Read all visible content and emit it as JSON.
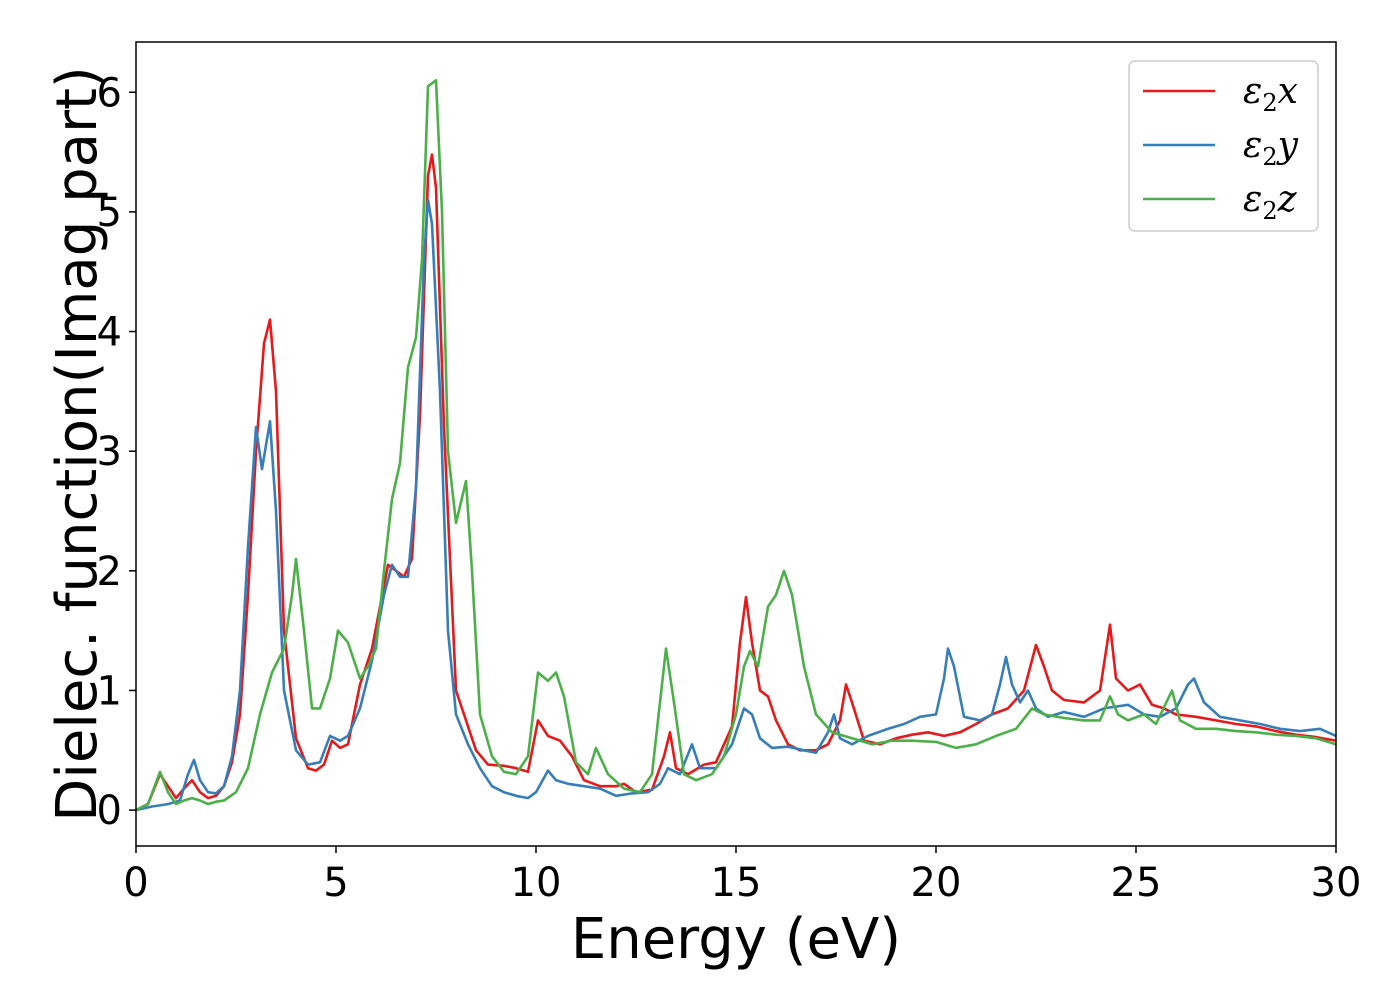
{
  "chart_data": {
    "type": "line",
    "xlabel": "Energy (eV)",
    "ylabel": "Dielec. function(Imag part)",
    "xlim": [
      0,
      30
    ],
    "ylim": [
      -0.3,
      6.42
    ],
    "xticks": [
      0,
      5,
      10,
      15,
      20,
      25,
      30
    ],
    "yticks": [
      0,
      1,
      2,
      3,
      4,
      5,
      6
    ],
    "grid": false,
    "legend_position": "top-right",
    "series": [
      {
        "name": "ε2x",
        "symbol": "ε",
        "sub": "2",
        "axis": "x",
        "color": "#e41a1c",
        "points": [
          [
            0,
            0
          ],
          [
            0.3,
            0.05
          ],
          [
            0.6,
            0.3
          ],
          [
            0.8,
            0.2
          ],
          [
            1.0,
            0.1
          ],
          [
            1.2,
            0.18
          ],
          [
            1.4,
            0.25
          ],
          [
            1.6,
            0.15
          ],
          [
            1.8,
            0.1
          ],
          [
            2.0,
            0.12
          ],
          [
            2.2,
            0.2
          ],
          [
            2.4,
            0.4
          ],
          [
            2.6,
            0.8
          ],
          [
            2.8,
            1.8
          ],
          [
            3.0,
            3.0
          ],
          [
            3.2,
            3.9
          ],
          [
            3.35,
            4.1
          ],
          [
            3.5,
            3.5
          ],
          [
            3.7,
            1.5
          ],
          [
            4.0,
            0.6
          ],
          [
            4.3,
            0.35
          ],
          [
            4.5,
            0.33
          ],
          [
            4.7,
            0.38
          ],
          [
            4.9,
            0.58
          ],
          [
            5.1,
            0.52
          ],
          [
            5.3,
            0.55
          ],
          [
            5.6,
            1.05
          ],
          [
            5.9,
            1.35
          ],
          [
            6.1,
            1.7
          ],
          [
            6.3,
            2.05
          ],
          [
            6.5,
            2.0
          ],
          [
            6.7,
            1.95
          ],
          [
            6.9,
            2.1
          ],
          [
            7.1,
            3.3
          ],
          [
            7.3,
            5.3
          ],
          [
            7.4,
            5.48
          ],
          [
            7.5,
            5.2
          ],
          [
            7.7,
            3.2
          ],
          [
            8.0,
            1.0
          ],
          [
            8.3,
            0.7
          ],
          [
            8.5,
            0.5
          ],
          [
            8.8,
            0.38
          ],
          [
            9.2,
            0.37
          ],
          [
            9.5,
            0.35
          ],
          [
            9.8,
            0.32
          ],
          [
            10.05,
            0.75
          ],
          [
            10.3,
            0.62
          ],
          [
            10.6,
            0.58
          ],
          [
            10.9,
            0.45
          ],
          [
            11.2,
            0.25
          ],
          [
            11.6,
            0.2
          ],
          [
            12.0,
            0.2
          ],
          [
            12.2,
            0.22
          ],
          [
            12.5,
            0.15
          ],
          [
            12.9,
            0.17
          ],
          [
            13.2,
            0.45
          ],
          [
            13.35,
            0.65
          ],
          [
            13.5,
            0.35
          ],
          [
            13.8,
            0.3
          ],
          [
            14.2,
            0.38
          ],
          [
            14.5,
            0.4
          ],
          [
            14.9,
            0.7
          ],
          [
            15.1,
            1.4
          ],
          [
            15.25,
            1.78
          ],
          [
            15.4,
            1.4
          ],
          [
            15.6,
            1.0
          ],
          [
            15.8,
            0.95
          ],
          [
            16.0,
            0.75
          ],
          [
            16.3,
            0.55
          ],
          [
            16.6,
            0.5
          ],
          [
            17.0,
            0.5
          ],
          [
            17.3,
            0.55
          ],
          [
            17.6,
            0.75
          ],
          [
            17.75,
            1.05
          ],
          [
            17.9,
            0.9
          ],
          [
            18.2,
            0.58
          ],
          [
            18.6,
            0.55
          ],
          [
            19.0,
            0.6
          ],
          [
            19.4,
            0.63
          ],
          [
            19.8,
            0.65
          ],
          [
            20.2,
            0.62
          ],
          [
            20.6,
            0.65
          ],
          [
            21.0,
            0.72
          ],
          [
            21.4,
            0.8
          ],
          [
            21.8,
            0.85
          ],
          [
            22.2,
            1.0
          ],
          [
            22.5,
            1.38
          ],
          [
            22.7,
            1.2
          ],
          [
            22.9,
            1.0
          ],
          [
            23.2,
            0.92
          ],
          [
            23.7,
            0.9
          ],
          [
            24.1,
            1.0
          ],
          [
            24.35,
            1.55
          ],
          [
            24.5,
            1.1
          ],
          [
            24.8,
            1.0
          ],
          [
            25.1,
            1.05
          ],
          [
            25.4,
            0.88
          ],
          [
            25.7,
            0.85
          ],
          [
            26.0,
            0.8
          ],
          [
            26.5,
            0.78
          ],
          [
            27.0,
            0.75
          ],
          [
            27.5,
            0.72
          ],
          [
            28.0,
            0.7
          ],
          [
            28.5,
            0.66
          ],
          [
            29.0,
            0.63
          ],
          [
            29.5,
            0.61
          ],
          [
            30.0,
            0.58
          ]
        ]
      },
      {
        "name": "ε2y",
        "symbol": "ε",
        "sub": "2",
        "axis": "y",
        "color": "#377eb8",
        "points": [
          [
            0,
            0
          ],
          [
            0.4,
            0.03
          ],
          [
            0.8,
            0.05
          ],
          [
            1.1,
            0.08
          ],
          [
            1.3,
            0.3
          ],
          [
            1.45,
            0.42
          ],
          [
            1.6,
            0.25
          ],
          [
            1.8,
            0.15
          ],
          [
            2.0,
            0.14
          ],
          [
            2.2,
            0.2
          ],
          [
            2.4,
            0.45
          ],
          [
            2.6,
            1.0
          ],
          [
            2.8,
            2.2
          ],
          [
            3.0,
            3.2
          ],
          [
            3.15,
            2.85
          ],
          [
            3.35,
            3.25
          ],
          [
            3.5,
            2.5
          ],
          [
            3.7,
            1.0
          ],
          [
            4.0,
            0.5
          ],
          [
            4.3,
            0.38
          ],
          [
            4.6,
            0.4
          ],
          [
            4.85,
            0.62
          ],
          [
            5.1,
            0.58
          ],
          [
            5.3,
            0.62
          ],
          [
            5.6,
            0.85
          ],
          [
            5.9,
            1.25
          ],
          [
            6.2,
            1.8
          ],
          [
            6.4,
            2.05
          ],
          [
            6.6,
            1.95
          ],
          [
            6.8,
            1.95
          ],
          [
            7.0,
            2.7
          ],
          [
            7.2,
            4.6
          ],
          [
            7.3,
            5.1
          ],
          [
            7.4,
            4.9
          ],
          [
            7.6,
            3.5
          ],
          [
            7.8,
            1.5
          ],
          [
            8.0,
            0.8
          ],
          [
            8.3,
            0.55
          ],
          [
            8.6,
            0.35
          ],
          [
            8.9,
            0.2
          ],
          [
            9.2,
            0.15
          ],
          [
            9.5,
            0.12
          ],
          [
            9.8,
            0.1
          ],
          [
            10.0,
            0.15
          ],
          [
            10.3,
            0.33
          ],
          [
            10.5,
            0.25
          ],
          [
            10.8,
            0.22
          ],
          [
            11.2,
            0.2
          ],
          [
            11.6,
            0.18
          ],
          [
            12.0,
            0.12
          ],
          [
            12.4,
            0.14
          ],
          [
            12.8,
            0.15
          ],
          [
            13.1,
            0.22
          ],
          [
            13.3,
            0.35
          ],
          [
            13.6,
            0.3
          ],
          [
            13.9,
            0.55
          ],
          [
            14.1,
            0.35
          ],
          [
            14.5,
            0.35
          ],
          [
            14.9,
            0.55
          ],
          [
            15.2,
            0.85
          ],
          [
            15.4,
            0.8
          ],
          [
            15.6,
            0.6
          ],
          [
            15.9,
            0.52
          ],
          [
            16.3,
            0.53
          ],
          [
            16.7,
            0.5
          ],
          [
            17.0,
            0.48
          ],
          [
            17.3,
            0.65
          ],
          [
            17.45,
            0.8
          ],
          [
            17.6,
            0.6
          ],
          [
            17.9,
            0.55
          ],
          [
            18.3,
            0.62
          ],
          [
            18.8,
            0.68
          ],
          [
            19.2,
            0.72
          ],
          [
            19.6,
            0.78
          ],
          [
            20.0,
            0.8
          ],
          [
            20.2,
            1.1
          ],
          [
            20.3,
            1.35
          ],
          [
            20.45,
            1.2
          ],
          [
            20.7,
            0.78
          ],
          [
            21.1,
            0.75
          ],
          [
            21.4,
            0.8
          ],
          [
            21.6,
            1.05
          ],
          [
            21.75,
            1.28
          ],
          [
            21.9,
            1.05
          ],
          [
            22.1,
            0.9
          ],
          [
            22.3,
            1.0
          ],
          [
            22.5,
            0.85
          ],
          [
            22.8,
            0.78
          ],
          [
            23.2,
            0.82
          ],
          [
            23.7,
            0.78
          ],
          [
            24.2,
            0.85
          ],
          [
            24.8,
            0.88
          ],
          [
            25.2,
            0.8
          ],
          [
            25.6,
            0.78
          ],
          [
            26.0,
            0.85
          ],
          [
            26.3,
            1.05
          ],
          [
            26.45,
            1.1
          ],
          [
            26.7,
            0.9
          ],
          [
            27.1,
            0.78
          ],
          [
            27.6,
            0.75
          ],
          [
            28.1,
            0.72
          ],
          [
            28.6,
            0.68
          ],
          [
            29.1,
            0.66
          ],
          [
            29.6,
            0.68
          ],
          [
            30.0,
            0.62
          ]
        ]
      },
      {
        "name": "ε2z",
        "symbol": "ε",
        "sub": "2",
        "axis": "z",
        "color": "#4daf4a",
        "points": [
          [
            0,
            0
          ],
          [
            0.3,
            0.05
          ],
          [
            0.6,
            0.32
          ],
          [
            0.8,
            0.15
          ],
          [
            1.0,
            0.05
          ],
          [
            1.2,
            0.08
          ],
          [
            1.4,
            0.1
          ],
          [
            1.6,
            0.08
          ],
          [
            1.8,
            0.05
          ],
          [
            2.0,
            0.07
          ],
          [
            2.2,
            0.08
          ],
          [
            2.5,
            0.15
          ],
          [
            2.8,
            0.35
          ],
          [
            3.1,
            0.8
          ],
          [
            3.4,
            1.15
          ],
          [
            3.7,
            1.35
          ],
          [
            3.9,
            1.8
          ],
          [
            4.0,
            2.1
          ],
          [
            4.2,
            1.5
          ],
          [
            4.4,
            0.85
          ],
          [
            4.6,
            0.85
          ],
          [
            4.85,
            1.1
          ],
          [
            5.05,
            1.5
          ],
          [
            5.3,
            1.4
          ],
          [
            5.6,
            1.1
          ],
          [
            5.8,
            1.2
          ],
          [
            6.0,
            1.35
          ],
          [
            6.2,
            2.0
          ],
          [
            6.4,
            2.6
          ],
          [
            6.6,
            2.9
          ],
          [
            6.8,
            3.7
          ],
          [
            7.0,
            3.95
          ],
          [
            7.15,
            4.6
          ],
          [
            7.3,
            6.05
          ],
          [
            7.5,
            6.1
          ],
          [
            7.65,
            5.0
          ],
          [
            7.8,
            3.0
          ],
          [
            8.0,
            2.4
          ],
          [
            8.25,
            2.75
          ],
          [
            8.4,
            2.0
          ],
          [
            8.6,
            0.8
          ],
          [
            8.9,
            0.45
          ],
          [
            9.2,
            0.32
          ],
          [
            9.5,
            0.3
          ],
          [
            9.8,
            0.45
          ],
          [
            10.05,
            1.15
          ],
          [
            10.3,
            1.08
          ],
          [
            10.5,
            1.15
          ],
          [
            10.7,
            0.95
          ],
          [
            11.0,
            0.4
          ],
          [
            11.3,
            0.3
          ],
          [
            11.5,
            0.52
          ],
          [
            11.8,
            0.3
          ],
          [
            12.2,
            0.18
          ],
          [
            12.6,
            0.15
          ],
          [
            12.9,
            0.3
          ],
          [
            13.1,
            0.9
          ],
          [
            13.25,
            1.35
          ],
          [
            13.45,
            0.9
          ],
          [
            13.7,
            0.3
          ],
          [
            14.0,
            0.25
          ],
          [
            14.4,
            0.3
          ],
          [
            14.7,
            0.45
          ],
          [
            15.0,
            0.8
          ],
          [
            15.2,
            1.2
          ],
          [
            15.35,
            1.33
          ],
          [
            15.55,
            1.2
          ],
          [
            15.8,
            1.7
          ],
          [
            16.0,
            1.8
          ],
          [
            16.2,
            2.0
          ],
          [
            16.4,
            1.8
          ],
          [
            16.7,
            1.2
          ],
          [
            17.0,
            0.8
          ],
          [
            17.4,
            0.65
          ],
          [
            17.9,
            0.6
          ],
          [
            18.4,
            0.55
          ],
          [
            18.9,
            0.58
          ],
          [
            19.4,
            0.58
          ],
          [
            20.0,
            0.57
          ],
          [
            20.5,
            0.52
          ],
          [
            21.0,
            0.55
          ],
          [
            21.5,
            0.62
          ],
          [
            22.0,
            0.68
          ],
          [
            22.4,
            0.85
          ],
          [
            22.7,
            0.8
          ],
          [
            23.2,
            0.77
          ],
          [
            23.7,
            0.75
          ],
          [
            24.1,
            0.75
          ],
          [
            24.35,
            0.95
          ],
          [
            24.55,
            0.8
          ],
          [
            24.8,
            0.75
          ],
          [
            25.2,
            0.8
          ],
          [
            25.5,
            0.72
          ],
          [
            25.9,
            1.0
          ],
          [
            26.1,
            0.75
          ],
          [
            26.5,
            0.68
          ],
          [
            27.0,
            0.68
          ],
          [
            27.5,
            0.66
          ],
          [
            28.0,
            0.65
          ],
          [
            28.5,
            0.63
          ],
          [
            29.0,
            0.62
          ],
          [
            29.5,
            0.6
          ],
          [
            30.0,
            0.55
          ]
        ]
      }
    ]
  }
}
